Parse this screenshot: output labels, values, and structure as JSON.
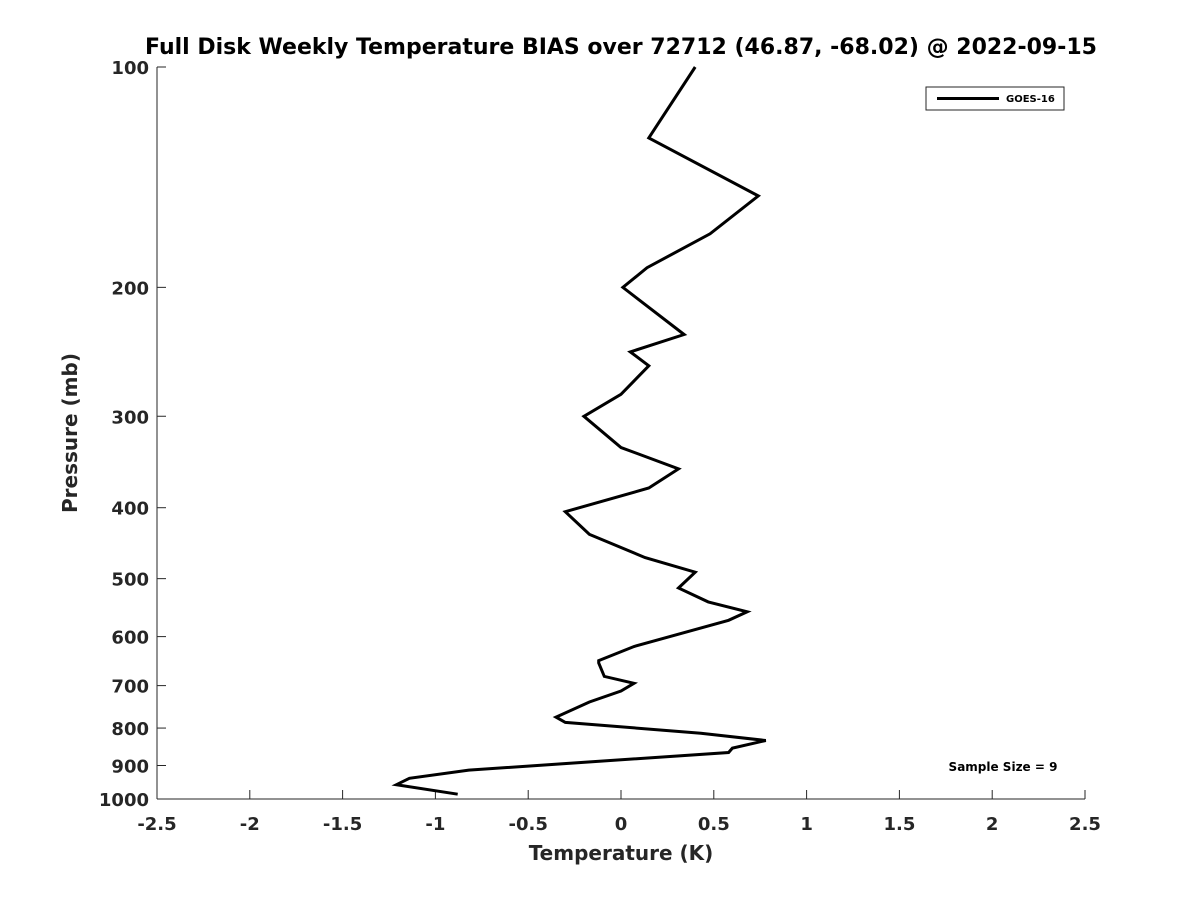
{
  "chart_data": {
    "type": "line",
    "title": "Full Disk Weekly Temperature BIAS over 72712 (46.87, -68.02) @ 2022-09-15",
    "xlabel": "Temperature (K)",
    "ylabel": "Pressure (mb)",
    "xlim": [
      -2.5,
      2.5
    ],
    "ylim": [
      1000,
      100
    ],
    "y_scale": "log",
    "y_reversed": true,
    "grid": false,
    "x_ticks": [
      "-2.5",
      "-2",
      "-1.5",
      "-1",
      "-0.5",
      "0",
      "0.5",
      "1",
      "1.5",
      "2",
      "2.5"
    ],
    "y_ticks": [
      "100",
      "200",
      "300",
      "400",
      "500",
      "600",
      "700",
      "800",
      "900",
      "1000"
    ],
    "legend": {
      "position": "top-right",
      "entries": [
        "GOES-16"
      ]
    },
    "annotation": "Sample Size = 9",
    "series": [
      {
        "name": "GOES-16",
        "color": "#000000",
        "x": [
          0.4,
          0.15,
          0.74,
          0.48,
          0.14,
          0.01,
          0.34,
          0.05,
          0.15,
          0.0,
          -0.2,
          0.0,
          0.31,
          0.15,
          -0.3,
          -0.17,
          0.13,
          0.4,
          0.31,
          0.47,
          0.68,
          0.58,
          0.07,
          -0.12,
          -0.12,
          -0.09,
          0.07,
          0.0,
          -0.17,
          -0.35,
          -0.3,
          0.43,
          0.78,
          0.6,
          0.58,
          -0.82,
          -1.14,
          -1.21,
          -0.88
        ],
        "y": [
          100,
          125,
          150,
          169,
          188,
          200,
          232,
          245,
          256,
          280,
          300,
          331,
          354,
          376,
          405,
          435,
          468,
          490,
          515,
          538,
          555,
          570,
          619,
          647,
          652,
          680,
          695,
          712,
          737,
          773,
          786,
          813,
          832,
          852,
          864,
          913,
          937,
          956,
          985
        ]
      }
    ]
  }
}
